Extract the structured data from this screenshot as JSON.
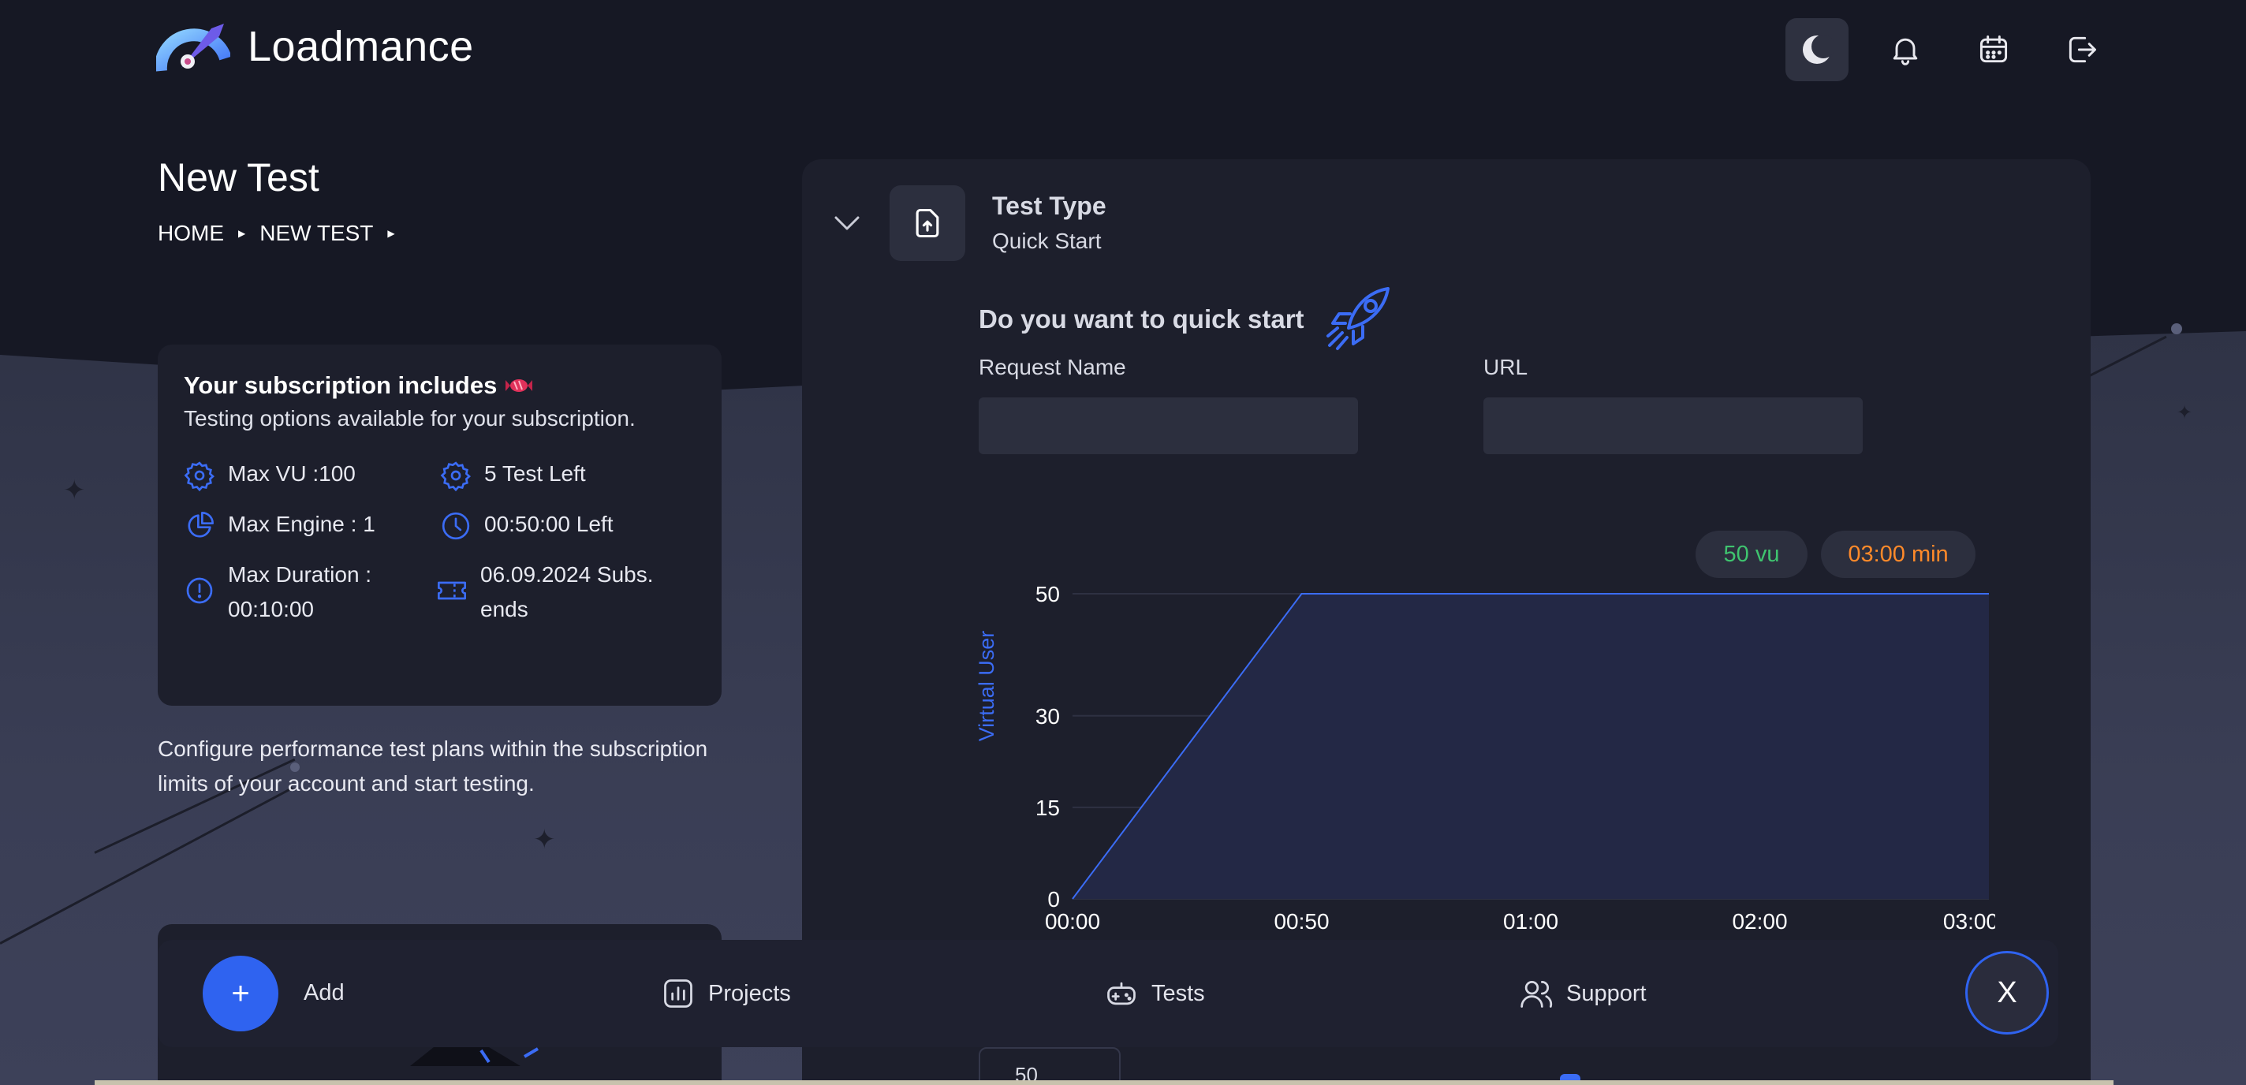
{
  "app": {
    "name": "Loadmance"
  },
  "header": {
    "icons": [
      "moon-icon",
      "bell-icon",
      "calendar-icon",
      "logout-icon"
    ]
  },
  "page": {
    "title": "New Test",
    "breadcrumb": [
      "HOME",
      "NEW TEST"
    ]
  },
  "subscription": {
    "title": "Your subscription includes",
    "description": "Testing options available for your subscription.",
    "features": [
      {
        "icon": "gear-icon",
        "label": "Max VU :100"
      },
      {
        "icon": "gear-icon",
        "label": "5 Test Left"
      },
      {
        "icon": "pie-chart-icon",
        "label": "Max Engine : 1"
      },
      {
        "icon": "clock-icon",
        "label": "00:50:00 Left"
      },
      {
        "icon": "alert-circle-icon",
        "label_line1": "Max Duration :",
        "label_line2": "00:10:00"
      },
      {
        "icon": "ticket-icon",
        "label_line1": "06.09.2024 Subs.",
        "label_line2": "ends"
      }
    ]
  },
  "config_text": "Configure performance test plans within the subscription limits of your account and start testing.",
  "test_type": {
    "title": "Test Type",
    "value": "Quick Start"
  },
  "quick_start": {
    "question": "Do you want to quick start",
    "request_name_label": "Request Name",
    "request_name_value": "",
    "url_label": "URL",
    "url_value": ""
  },
  "pills": {
    "vu": "50 vu",
    "duration": "03:00 min"
  },
  "chart_data": {
    "type": "area",
    "ylabel": "Virtual User",
    "xlabel": "",
    "x_ticks": [
      "00:00",
      "00:50",
      "01:00",
      "02:00",
      "03:00"
    ],
    "y_ticks": [
      0,
      15,
      30,
      50
    ],
    "ylim": [
      0,
      50
    ],
    "points": [
      {
        "x": "00:00",
        "y": 0
      },
      {
        "x": "00:50",
        "y": 50
      },
      {
        "x": "03:00",
        "y": 50
      }
    ],
    "colors": {
      "line": "#3b6cf5",
      "fill": "#232845",
      "grid": "#2e3142"
    }
  },
  "below_input_value": "50",
  "bottom_bar": {
    "add_label": "Add",
    "add_symbol": "+",
    "nav": [
      {
        "icon": "bar-chart-icon",
        "label": "Projects"
      },
      {
        "icon": "gamepad-icon",
        "label": "Tests"
      },
      {
        "icon": "users-icon",
        "label": "Support"
      }
    ],
    "close_label": "X"
  },
  "colors": {
    "accent": "#2f63f0",
    "background": "#161824",
    "card": "#1d1f2c"
  }
}
